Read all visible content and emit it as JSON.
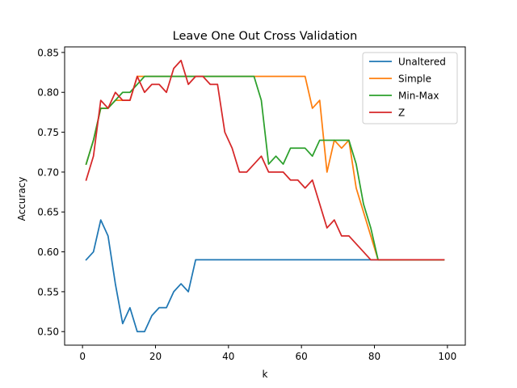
{
  "chart_data": {
    "type": "line",
    "title": "Leave One Out Cross Validation",
    "xlabel": "k",
    "ylabel": "Accuracy",
    "xlim": [
      -4.9,
      104.9
    ],
    "ylim": [
      0.483,
      0.857
    ],
    "xticks": [
      0,
      20,
      40,
      60,
      80,
      100
    ],
    "yticks": [
      0.5,
      0.55,
      0.6,
      0.65,
      0.7,
      0.75,
      0.8,
      0.85
    ],
    "ytick_labels": [
      "0.50",
      "0.55",
      "0.60",
      "0.65",
      "0.70",
      "0.75",
      "0.80",
      "0.85"
    ],
    "grid": false,
    "legend_position": "top-right",
    "x": [
      1,
      3,
      5,
      7,
      9,
      11,
      13,
      15,
      17,
      19,
      21,
      23,
      25,
      27,
      29,
      31,
      33,
      35,
      37,
      39,
      41,
      43,
      45,
      47,
      49,
      51,
      53,
      55,
      57,
      59,
      61,
      63,
      65,
      67,
      69,
      71,
      73,
      75,
      77,
      79,
      81,
      83,
      85,
      87,
      89,
      91,
      93,
      95,
      97,
      99
    ],
    "series": [
      {
        "name": "Unaltered",
        "color": "#1f77b4",
        "values": [
          0.59,
          0.6,
          0.64,
          0.62,
          0.56,
          0.51,
          0.53,
          0.5,
          0.5,
          0.52,
          0.53,
          0.53,
          0.55,
          0.56,
          0.55,
          0.59,
          0.59,
          0.59,
          0.59,
          0.59,
          0.59,
          0.59,
          0.59,
          0.59,
          0.59,
          0.59,
          0.59,
          0.59,
          0.59,
          0.59,
          0.59,
          0.59,
          0.59,
          0.59,
          0.59,
          0.59,
          0.59,
          0.59,
          0.59,
          0.59,
          0.59,
          0.59,
          0.59,
          0.59,
          0.59,
          0.59,
          0.59,
          0.59,
          0.59,
          0.59
        ]
      },
      {
        "name": "Simple",
        "color": "#ff7f0e",
        "values": [
          0.71,
          0.74,
          0.78,
          0.78,
          0.79,
          0.79,
          0.79,
          0.82,
          0.82,
          0.82,
          0.82,
          0.82,
          0.82,
          0.82,
          0.82,
          0.82,
          0.82,
          0.82,
          0.82,
          0.82,
          0.82,
          0.82,
          0.82,
          0.82,
          0.82,
          0.82,
          0.82,
          0.82,
          0.82,
          0.82,
          0.82,
          0.78,
          0.79,
          0.7,
          0.74,
          0.73,
          0.74,
          0.68,
          0.65,
          0.62,
          0.59,
          0.59,
          0.59,
          0.59,
          0.59,
          0.59,
          0.59,
          0.59,
          0.59,
          0.59
        ]
      },
      {
        "name": "Min-Max",
        "color": "#2ca02c",
        "values": [
          0.71,
          0.74,
          0.78,
          0.78,
          0.79,
          0.8,
          0.8,
          0.81,
          0.82,
          0.82,
          0.82,
          0.82,
          0.82,
          0.82,
          0.82,
          0.82,
          0.82,
          0.82,
          0.82,
          0.82,
          0.82,
          0.82,
          0.82,
          0.82,
          0.79,
          0.71,
          0.72,
          0.71,
          0.73,
          0.73,
          0.73,
          0.72,
          0.74,
          0.74,
          0.74,
          0.74,
          0.74,
          0.71,
          0.66,
          0.63,
          0.59,
          0.59,
          0.59,
          0.59,
          0.59,
          0.59,
          0.59,
          0.59,
          0.59,
          0.59
        ]
      },
      {
        "name": "Z",
        "color": "#d62728",
        "values": [
          0.69,
          0.72,
          0.79,
          0.78,
          0.8,
          0.79,
          0.79,
          0.82,
          0.8,
          0.81,
          0.81,
          0.8,
          0.83,
          0.84,
          0.81,
          0.82,
          0.82,
          0.81,
          0.81,
          0.75,
          0.73,
          0.7,
          0.7,
          0.71,
          0.72,
          0.7,
          0.7,
          0.7,
          0.69,
          0.69,
          0.68,
          0.69,
          0.66,
          0.63,
          0.64,
          0.62,
          0.62,
          0.61,
          0.6,
          0.59,
          0.59,
          0.59,
          0.59,
          0.59,
          0.59,
          0.59,
          0.59,
          0.59,
          0.59,
          0.59
        ]
      }
    ]
  }
}
